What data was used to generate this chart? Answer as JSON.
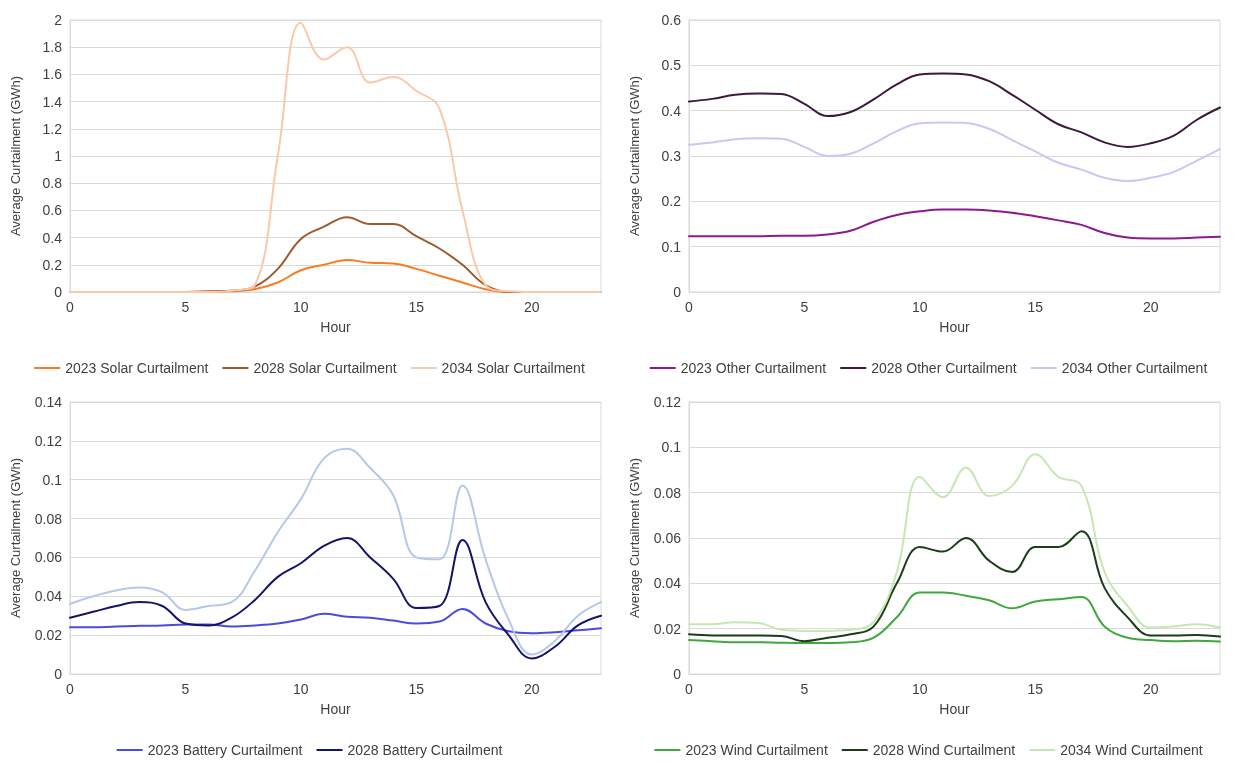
{
  "chart_data": [
    {
      "type": "line",
      "xlabel": "Hour",
      "ylabel": "Average Curtailment (GWh)",
      "x": [
        0,
        1,
        2,
        3,
        4,
        5,
        6,
        7,
        8,
        9,
        10,
        11,
        12,
        13,
        14,
        15,
        16,
        17,
        18,
        19,
        20,
        21,
        22,
        23
      ],
      "xlim": [
        0,
        23
      ],
      "xticks": [
        0,
        5,
        10,
        15,
        20
      ],
      "ylim": [
        0,
        2
      ],
      "yticks": [
        0,
        0.2,
        0.4,
        0.6,
        0.8,
        1,
        1.2,
        1.4,
        1.6,
        1.8,
        2
      ],
      "grid": "y",
      "legend": "bottom",
      "marker": "none",
      "line_style": "solid",
      "series": [
        {
          "name": "2023 Solar Curtailment",
          "color": "#f97c20",
          "values": [
            0,
            0,
            0,
            0,
            0,
            0,
            0,
            0.005,
            0.02,
            0.07,
            0.16,
            0.2,
            0.235,
            0.215,
            0.21,
            0.17,
            0.12,
            0.07,
            0.02,
            0,
            0,
            0,
            0,
            0
          ]
        },
        {
          "name": "2028 Solar Curtailment",
          "color": "#9e5a2e",
          "values": [
            null,
            null,
            null,
            null,
            null,
            0,
            0.005,
            0.01,
            0.04,
            0.17,
            0.39,
            0.48,
            0.55,
            0.5,
            0.5,
            0.41,
            0.32,
            0.2,
            0.05,
            0,
            0,
            0,
            null,
            null
          ]
        },
        {
          "name": "2034 Solar Curtailment",
          "color": "#f9c9a8",
          "values": [
            0,
            0,
            0,
            0,
            0,
            0,
            0,
            0.01,
            0.05,
            1.0,
            1.98,
            1.71,
            1.8,
            1.54,
            1.58,
            1.48,
            1.35,
            0.6,
            0.05,
            0.005,
            0,
            0,
            0,
            0
          ]
        }
      ]
    },
    {
      "type": "line",
      "xlabel": "Hour",
      "ylabel": "Average Curtailment (GWh)",
      "x": [
        0,
        1,
        2,
        3,
        4,
        5,
        6,
        7,
        8,
        9,
        10,
        11,
        12,
        13,
        14,
        15,
        16,
        17,
        18,
        19,
        20,
        21,
        22,
        23
      ],
      "xlim": [
        0,
        23
      ],
      "xticks": [
        0,
        5,
        10,
        15,
        20
      ],
      "ylim": [
        0,
        0.6
      ],
      "yticks": [
        0,
        0.1,
        0.2,
        0.3,
        0.4,
        0.5,
        0.6
      ],
      "grid": "y",
      "legend": "bottom",
      "marker": "none",
      "line_style": "solid",
      "series": [
        {
          "name": "2023 Other Curtailment",
          "color": "#8b1a8f",
          "values": [
            0.123,
            0.123,
            0.123,
            0.123,
            0.124,
            0.124,
            0.127,
            0.135,
            0.155,
            0.17,
            0.178,
            0.182,
            0.182,
            0.18,
            0.175,
            0.167,
            0.158,
            0.148,
            0.13,
            0.12,
            0.118,
            0.118,
            0.12,
            0.122
          ]
        },
        {
          "name": "2028 Other Curtailment",
          "color": "#3d1a3d",
          "values": [
            0.42,
            0.426,
            0.435,
            0.438,
            0.437,
            0.415,
            0.388,
            0.397,
            0.425,
            0.458,
            0.48,
            0.482,
            0.48,
            0.465,
            0.435,
            0.402,
            0.37,
            0.352,
            0.33,
            0.32,
            0.328,
            0.345,
            0.38,
            0.407
          ]
        },
        {
          "name": "2034 Other Curtailment",
          "color": "#c8c8f4",
          "values": [
            0.325,
            0.33,
            0.337,
            0.339,
            0.338,
            0.32,
            0.3,
            0.305,
            0.328,
            0.355,
            0.372,
            0.374,
            0.373,
            0.36,
            0.335,
            0.31,
            0.285,
            0.27,
            0.252,
            0.245,
            0.252,
            0.265,
            0.29,
            0.315
          ]
        }
      ]
    },
    {
      "type": "line",
      "xlabel": "Hour",
      "ylabel": "Average Curtailment (GWh)",
      "x": [
        0,
        1,
        2,
        3,
        4,
        5,
        6,
        7,
        8,
        9,
        10,
        11,
        12,
        13,
        14,
        15,
        16,
        17,
        18,
        19,
        20,
        21,
        22,
        23
      ],
      "xlim": [
        0,
        23
      ],
      "xticks": [
        0,
        5,
        10,
        15,
        20
      ],
      "ylim": [
        0,
        0.14
      ],
      "yticks": [
        0,
        0.02,
        0.04,
        0.06,
        0.08,
        0.1,
        0.12,
        0.14
      ],
      "grid": "y",
      "legend": "bottom",
      "marker": "none",
      "line_style": "solid",
      "series": [
        {
          "name": "2023 Battery Curtailment",
          "color": "#4b4be0",
          "values": [
            0.024,
            0.024,
            0.0245,
            0.0248,
            0.025,
            0.0255,
            0.0255,
            0.0245,
            0.025,
            0.026,
            0.028,
            0.031,
            0.0295,
            0.029,
            0.0275,
            0.026,
            0.027,
            0.0335,
            0.026,
            0.022,
            0.021,
            0.0215,
            0.0225,
            0.0235
          ]
        },
        {
          "name": "2028 Battery Curtailment",
          "color": "#14146e",
          "values": [
            0.029,
            0.032,
            0.035,
            0.037,
            0.035,
            0.026,
            0.025,
            0.029,
            0.038,
            0.05,
            0.057,
            0.066,
            0.07,
            0.06,
            0.049,
            0.034,
            0.035,
            0.069,
            0.037,
            0.02,
            0.008,
            0.014,
            0.025,
            0.03
          ]
        },
        {
          "color": "#b4c8e8",
          "values": [
            0.036,
            0.04,
            0.043,
            0.0445,
            0.042,
            0.033,
            0.035,
            0.037,
            0.053,
            0.073,
            0.09,
            0.111,
            0.116,
            0.106,
            0.092,
            0.06,
            0.059,
            0.097,
            0.059,
            0.028,
            0.01,
            0.017,
            0.03,
            0.037
          ]
        }
      ]
    },
    {
      "type": "line",
      "xlabel": "Hour",
      "ylabel": "Average Curtailment (GWh)",
      "x": [
        0,
        1,
        2,
        3,
        4,
        5,
        6,
        7,
        8,
        9,
        10,
        11,
        12,
        13,
        14,
        15,
        16,
        17,
        18,
        19,
        20,
        21,
        22,
        23
      ],
      "xlim": [
        0,
        23
      ],
      "xticks": [
        0,
        5,
        10,
        15,
        20
      ],
      "ylim": [
        0,
        0.12
      ],
      "yticks": [
        0,
        0.02,
        0.04,
        0.06,
        0.08,
        0.1,
        0.12
      ],
      "grid": "y",
      "legend": "bottom",
      "marker": "none",
      "line_style": "solid",
      "series": [
        {
          "name": "2023 Wind Curtailment",
          "color": "#3fa83f",
          "values": [
            0.015,
            0.0145,
            0.014,
            0.014,
            0.0138,
            0.0137,
            0.0137,
            0.014,
            0.016,
            0.025,
            0.036,
            0.036,
            0.0345,
            0.0325,
            0.029,
            0.032,
            0.033,
            0.034,
            0.021,
            0.016,
            0.015,
            0.0145,
            0.0147,
            0.0143
          ]
        },
        {
          "name": "2028 Wind Curtailment",
          "color": "#1a3d1a",
          "values": [
            0.0175,
            0.017,
            0.017,
            0.017,
            0.0168,
            0.0145,
            0.016,
            0.0175,
            0.021,
            0.04,
            0.056,
            0.054,
            0.06,
            0.05,
            0.045,
            0.056,
            0.056,
            0.063,
            0.038,
            0.025,
            0.017,
            0.017,
            0.0172,
            0.0165
          ]
        },
        {
          "name": "2034 Wind Curtailment",
          "color": "#c8e6b4",
          "values": [
            0.022,
            0.022,
            0.0228,
            0.0225,
            0.0195,
            0.019,
            0.019,
            0.0195,
            0.023,
            0.045,
            0.087,
            0.078,
            0.091,
            0.0785,
            0.083,
            0.097,
            0.087,
            0.083,
            0.045,
            0.03,
            0.0205,
            0.021,
            0.022,
            0.0205
          ]
        }
      ]
    }
  ]
}
